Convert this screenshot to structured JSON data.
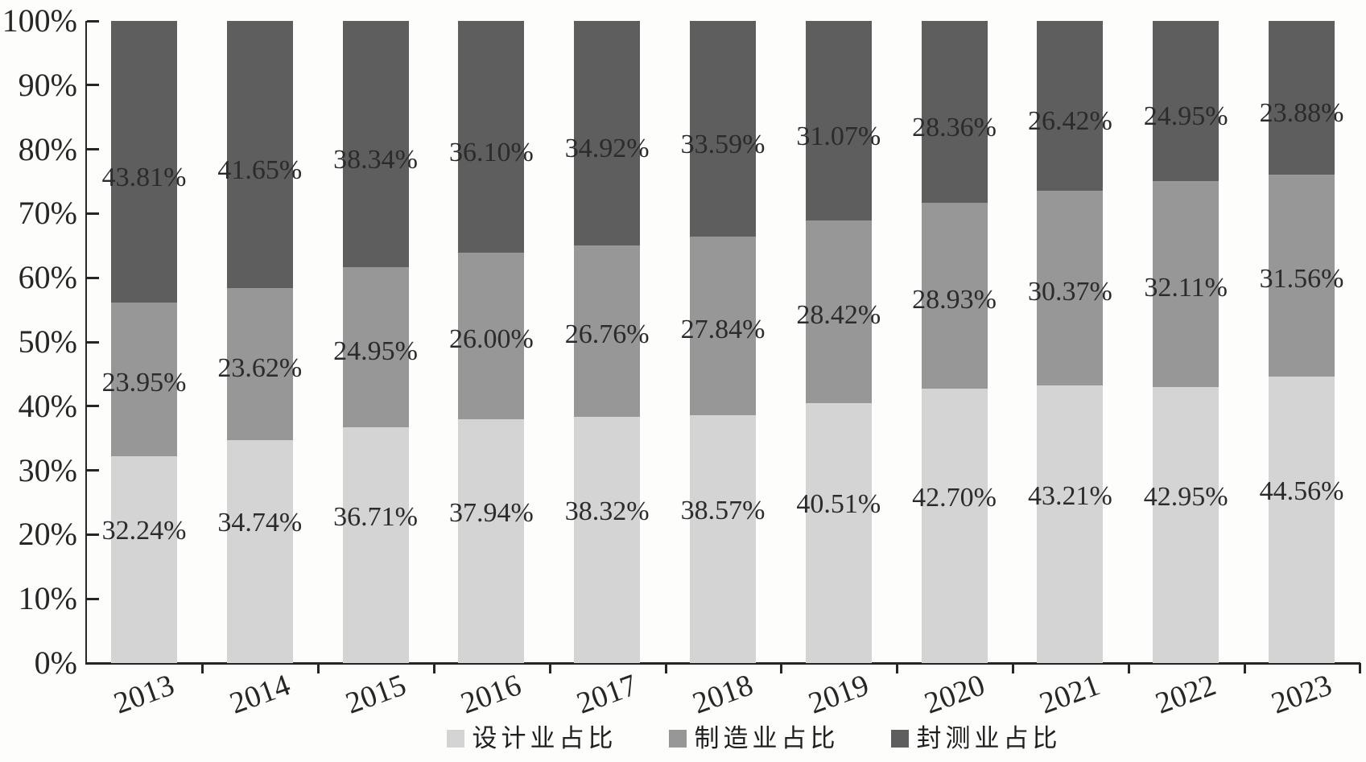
{
  "chart_data": {
    "type": "bar",
    "stacked": true,
    "percent_stacked": true,
    "categories": [
      "2013",
      "2014",
      "2015",
      "2016",
      "2017",
      "2018",
      "2019",
      "2020",
      "2021",
      "2022",
      "2023"
    ],
    "series": [
      {
        "name": "设计业占比",
        "color": "#d4d4d4",
        "values": [
          32.24,
          34.74,
          36.71,
          37.94,
          38.32,
          38.57,
          40.51,
          42.7,
          43.21,
          42.95,
          44.56
        ]
      },
      {
        "name": "制造业占比",
        "color": "#979797",
        "values": [
          23.95,
          23.62,
          24.95,
          26.0,
          26.76,
          27.84,
          28.42,
          28.93,
          30.37,
          32.11,
          31.56
        ]
      },
      {
        "name": "封测业占比",
        "color": "#5e5e5e",
        "values": [
          43.81,
          41.65,
          38.34,
          36.1,
          34.92,
          33.59,
          31.07,
          28.36,
          26.42,
          24.95,
          23.88
        ]
      }
    ],
    "data_labels": true,
    "label_suffix": "%",
    "label_decimals": 2,
    "y_axis": {
      "min": 0,
      "max": 100,
      "step": 10,
      "tick_labels": [
        "0%",
        "10%",
        "20%",
        "30%",
        "40%",
        "50%",
        "60%",
        "70%",
        "80%",
        "90%",
        "100%"
      ]
    },
    "grid": false,
    "legend_position": "bottom",
    "text_color": "#262626"
  }
}
